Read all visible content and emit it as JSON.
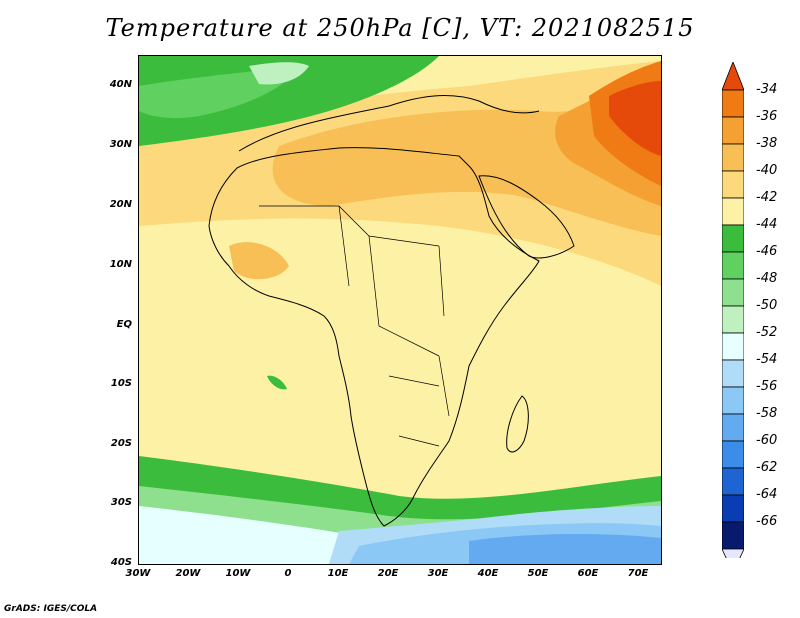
{
  "title": "Temperature at 250hPa [C], VT: 2021082515",
  "credit": "GrADS: IGES/COLA",
  "map": {
    "lat_labels": [
      "40N",
      "30N",
      "20N",
      "10N",
      "EQ",
      "10S",
      "20S",
      "30S",
      "40S"
    ],
    "lon_labels": [
      "30W",
      "20W",
      "10W",
      "0",
      "10E",
      "20E",
      "30E",
      "40E",
      "50E",
      "60E",
      "70E"
    ]
  },
  "colorbar": {
    "labels": [
      "-34",
      "-36",
      "-38",
      "-40",
      "-42",
      "-44",
      "-46",
      "-48",
      "-50",
      "-52",
      "-54",
      "-56",
      "-58",
      "-60",
      "-62",
      "-64",
      "-66"
    ],
    "colors": [
      "#e64a0a",
      "#f07a14",
      "#f5a032",
      "#f7bf55",
      "#fbd97c",
      "#fdf1a6",
      "#3cbc3c",
      "#60d060",
      "#8ee08e",
      "#bff0bf",
      "#e6ffff",
      "#b0dcf7",
      "#8cc8f5",
      "#64aaf0",
      "#3c8cea",
      "#1e64d2",
      "#0a3cb4",
      "#081a6e",
      "#e6e6ff"
    ]
  }
}
